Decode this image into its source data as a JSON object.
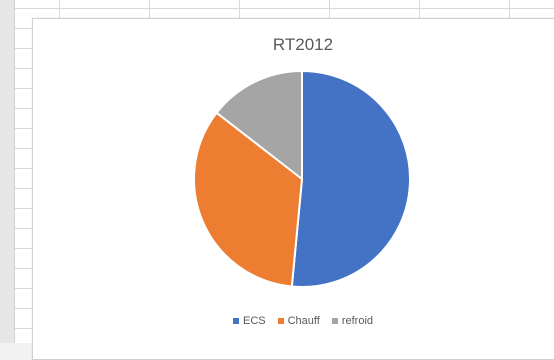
{
  "chart_data": {
    "type": "pie",
    "title": "RT2012",
    "categories": [
      "ECS",
      "Chauff",
      "refroid"
    ],
    "values": [
      51.5,
      34,
      14.5
    ],
    "colors": [
      "#4472c4",
      "#ed7d31",
      "#a5a5a5"
    ],
    "legend_position": "bottom"
  }
}
